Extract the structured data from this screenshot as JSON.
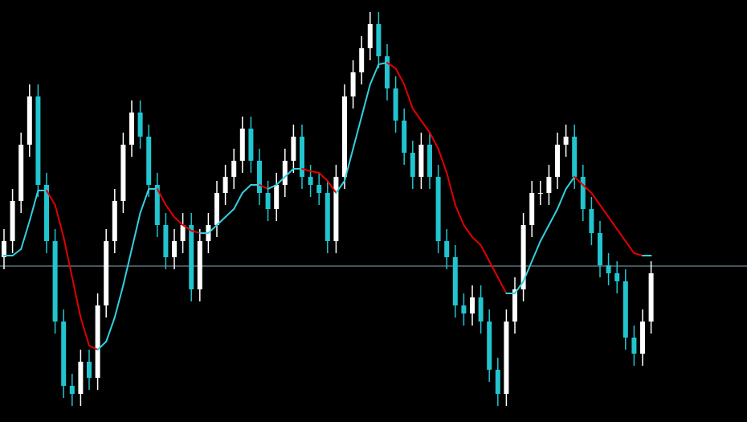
{
  "chart_data": {
    "type": "candlestick",
    "ylim": [
      0,
      525
    ],
    "background": "#000000",
    "up_color": "#ffffff",
    "down_color": "#22c4cf",
    "open": [
      205,
      225,
      275,
      345,
      405,
      295,
      225,
      125,
      45,
      35,
      75,
      55,
      145,
      225,
      275,
      345,
      385,
      355,
      295,
      245,
      205,
      225,
      245,
      165,
      225,
      245,
      285,
      305,
      325,
      365,
      325,
      285,
      265,
      295,
      325,
      355,
      305,
      295,
      285,
      225,
      305,
      405,
      435,
      465,
      495,
      455,
      415,
      375,
      335,
      305,
      345,
      305,
      225,
      205,
      145,
      135,
      155,
      125,
      65,
      35,
      125,
      165,
      245,
      285,
      285,
      305,
      345,
      355,
      305,
      265,
      235,
      195,
      185,
      175,
      105,
      85,
      125
    ],
    "high": [
      240,
      290,
      360,
      420,
      420,
      310,
      240,
      140,
      60,
      90,
      90,
      160,
      240,
      290,
      360,
      400,
      400,
      370,
      310,
      260,
      240,
      260,
      260,
      240,
      260,
      300,
      320,
      340,
      380,
      380,
      340,
      300,
      310,
      340,
      370,
      370,
      320,
      310,
      300,
      320,
      420,
      450,
      480,
      510,
      510,
      470,
      430,
      390,
      350,
      360,
      360,
      320,
      240,
      220,
      160,
      170,
      170,
      140,
      80,
      140,
      180,
      260,
      300,
      300,
      320,
      360,
      370,
      370,
      320,
      280,
      250,
      210,
      200,
      190,
      120,
      140,
      200
    ],
    "low": [
      190,
      210,
      260,
      330,
      280,
      210,
      110,
      30,
      20,
      20,
      40,
      40,
      130,
      210,
      260,
      330,
      340,
      280,
      230,
      190,
      190,
      210,
      150,
      150,
      210,
      230,
      270,
      290,
      310,
      310,
      270,
      250,
      250,
      280,
      310,
      290,
      280,
      270,
      210,
      210,
      290,
      390,
      420,
      450,
      440,
      400,
      360,
      320,
      290,
      290,
      290,
      210,
      190,
      130,
      120,
      120,
      110,
      50,
      20,
      20,
      110,
      150,
      230,
      270,
      270,
      290,
      330,
      290,
      250,
      220,
      180,
      170,
      160,
      90,
      70,
      70,
      110
    ],
    "close": [
      225,
      275,
      345,
      405,
      295,
      225,
      125,
      45,
      35,
      75,
      55,
      145,
      225,
      275,
      345,
      385,
      355,
      295,
      245,
      205,
      225,
      245,
      165,
      225,
      245,
      285,
      305,
      325,
      365,
      325,
      285,
      265,
      295,
      325,
      355,
      305,
      295,
      285,
      225,
      305,
      405,
      435,
      465,
      495,
      455,
      415,
      375,
      335,
      305,
      345,
      305,
      225,
      205,
      145,
      135,
      155,
      125,
      65,
      35,
      125,
      165,
      245,
      285,
      285,
      305,
      345,
      355,
      305,
      265,
      235,
      195,
      185,
      175,
      105,
      85,
      125,
      185
    ],
    "line": {
      "rising_color": "#33d0de",
      "falling_color": "#e00000",
      "values": [
        207,
        207,
        215,
        250,
        288,
        288,
        270,
        230,
        180,
        130,
        95,
        90,
        100,
        130,
        170,
        215,
        260,
        290,
        290,
        270,
        255,
        245,
        238,
        235,
        235,
        245,
        255,
        265,
        285,
        295,
        295,
        290,
        295,
        305,
        315,
        315,
        312,
        310,
        300,
        285,
        300,
        340,
        380,
        420,
        445,
        447,
        440,
        420,
        390,
        375,
        360,
        340,
        310,
        270,
        245,
        230,
        220,
        200,
        180,
        160,
        160,
        175,
        200,
        225,
        245,
        265,
        290,
        305,
        295,
        285,
        270,
        255,
        240,
        225,
        210,
        207,
        207
      ]
    },
    "hline": {
      "value": 194,
      "color": "#8aa7b8"
    }
  }
}
